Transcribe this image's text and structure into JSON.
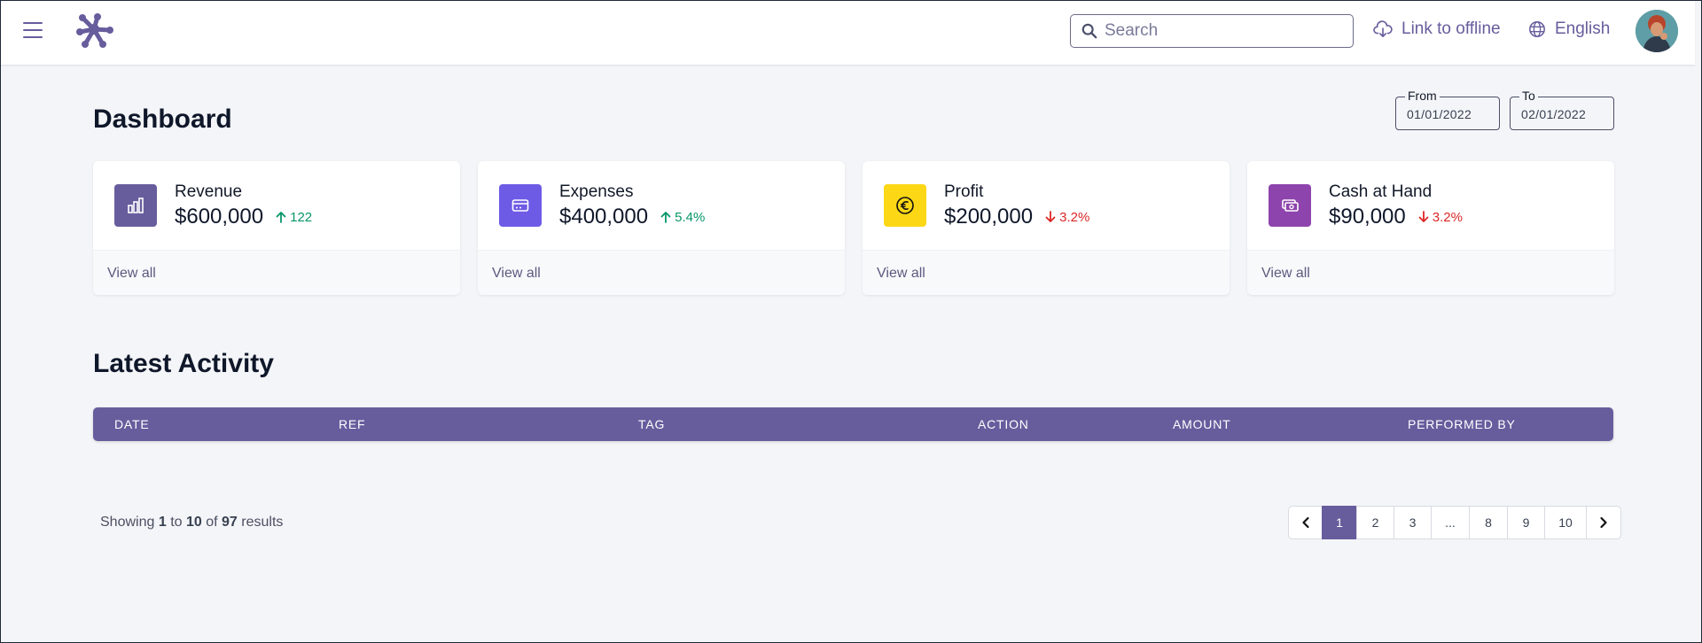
{
  "header": {
    "search_placeholder": "Search",
    "offline_label": "Link to offline",
    "language_label": "English"
  },
  "page": {
    "title": "Dashboard",
    "date_from_label": "From",
    "date_from_value": "01/01/2022",
    "date_to_label": "To",
    "date_to_value": "02/01/2022"
  },
  "cards": [
    {
      "name": "Revenue",
      "amount": "$600,000",
      "change": "122",
      "direction": "up",
      "icon": "bar-chart-icon",
      "color": "#675d9d",
      "link": "View all"
    },
    {
      "name": "Expenses",
      "amount": "$400,000",
      "change": "5.4%",
      "direction": "up",
      "icon": "credit-card-icon",
      "color": "#6d5be6",
      "link": "View all"
    },
    {
      "name": "Profit",
      "amount": "$200,000",
      "change": "3.2%",
      "direction": "down",
      "icon": "euro-coin-icon",
      "color": "#fcd716",
      "link": "View all"
    },
    {
      "name": "Cash at Hand",
      "amount": "$90,000",
      "change": "3.2%",
      "direction": "down",
      "icon": "cash-icon",
      "color": "#8e44ad",
      "link": "View all"
    }
  ],
  "activity": {
    "title": "Latest Activity",
    "columns": [
      "DATE",
      "REF",
      "TAG",
      "ACTION",
      "AMOUNT",
      "PERFORMED BY"
    ]
  },
  "pagination": {
    "showing_prefix": "Showing",
    "from": "1",
    "to_word": "to",
    "to": "10",
    "of_word": "of",
    "total": "97",
    "results_word": "results",
    "pages": [
      "1",
      "2",
      "3",
      "...",
      "8",
      "9",
      "10"
    ],
    "current": "1"
  },
  "colors": {
    "accent": "#675d9d",
    "up": "#059669",
    "down": "#dc2626"
  }
}
